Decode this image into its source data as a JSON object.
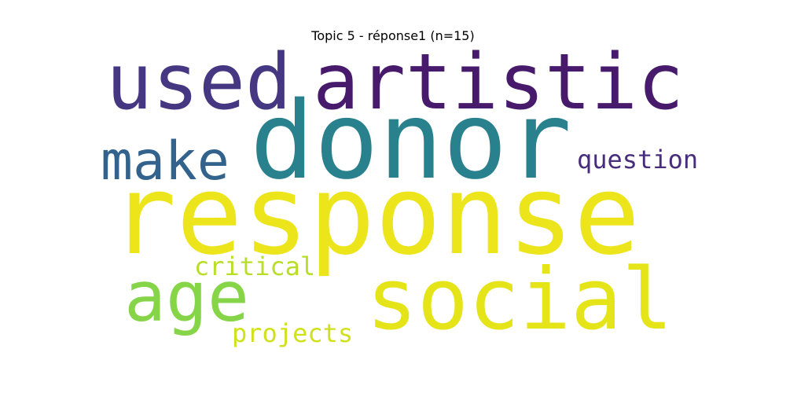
{
  "chart_data": {
    "type": "wordcloud",
    "title": "Topic 5 - réponse1 (n=15)",
    "words": [
      {
        "text": "response",
        "weight": 1.0,
        "color": "#ede51c"
      },
      {
        "text": "donor",
        "weight": 0.95,
        "color": "#29818d"
      },
      {
        "text": "artistic",
        "weight": 0.8,
        "color": "#481a6c"
      },
      {
        "text": "used",
        "weight": 0.8,
        "color": "#453781"
      },
      {
        "text": "social",
        "weight": 0.62,
        "color": "#e4e419"
      },
      {
        "text": "age",
        "weight": 0.55,
        "color": "#86d549"
      },
      {
        "text": "make",
        "weight": 0.5,
        "color": "#33628c"
      },
      {
        "text": "question",
        "weight": 0.2,
        "color": "#472d7b"
      },
      {
        "text": "critical",
        "weight": 0.18,
        "color": "#b8de29"
      },
      {
        "text": "projects",
        "weight": 0.17,
        "color": "#d0e11c"
      }
    ]
  }
}
